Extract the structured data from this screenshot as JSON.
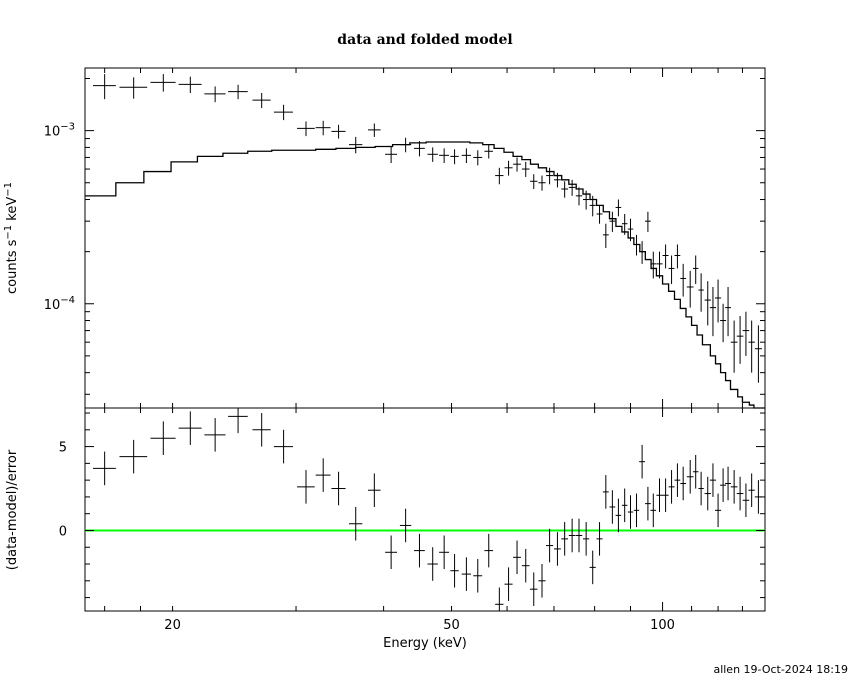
{
  "title": "data and folded model",
  "footer": "allen 19-Oct-2024 18:19",
  "colors": {
    "ink": "#000000",
    "zero_line": "#00ff00"
  },
  "chart_data": [
    {
      "type": "line",
      "panel": "top",
      "xscale": "log",
      "yscale": "log",
      "xlim": [
        15,
        140
      ],
      "ylim": [
        2.5e-05,
        0.0023
      ],
      "ylabel": "counts s^-1 keV^-1",
      "ytick_labels": [
        {
          "value": 0.001,
          "base": "10",
          "exp": "-3"
        },
        {
          "value": 0.0001,
          "base": "10",
          "exp": "-4"
        }
      ],
      "series": [
        {
          "kind": "data_crosses",
          "points": [
            [
              16.0,
              0.00182,
              0.6,
              0.0003
            ],
            [
              17.6,
              0.00178,
              0.8,
              0.00025
            ],
            [
              19.4,
              0.0019,
              0.8,
              0.00022
            ],
            [
              21.2,
              0.00185,
              0.8,
              0.0002
            ],
            [
              23.0,
              0.00163,
              0.8,
              0.00017
            ],
            [
              24.8,
              0.00168,
              0.8,
              0.00016
            ],
            [
              26.8,
              0.0015,
              0.8,
              0.00015
            ],
            [
              28.8,
              0.00128,
              0.9,
              0.00013
            ],
            [
              31.0,
              0.00103,
              0.9,
              0.0001
            ],
            [
              32.8,
              0.00104,
              0.8,
              0.0001
            ],
            [
              34.5,
              0.00099,
              0.8,
              9e-05
            ],
            [
              36.5,
              0.00083,
              0.8,
              9e-05
            ],
            [
              38.8,
              0.00101,
              0.8,
              9e-05
            ],
            [
              41.0,
              0.00073,
              0.8,
              8e-05
            ],
            [
              43.0,
              0.00083,
              0.8,
              8e-05
            ],
            [
              45.0,
              0.00079,
              0.8,
              8e-05
            ],
            [
              47.0,
              0.00073,
              0.8,
              7e-05
            ],
            [
              48.8,
              0.00072,
              0.8,
              7e-05
            ],
            [
              50.5,
              0.00071,
              0.7,
              7e-05
            ],
            [
              52.5,
              0.00072,
              0.8,
              7e-05
            ],
            [
              54.5,
              0.0007,
              0.8,
              7e-05
            ],
            [
              56.5,
              0.00076,
              0.8,
              7e-05
            ],
            [
              58.5,
              0.00055,
              0.8,
              6e-05
            ],
            [
              60.3,
              0.00061,
              0.8,
              6e-05
            ],
            [
              62.0,
              0.00064,
              0.8,
              6e-05
            ],
            [
              63.8,
              0.0006,
              0.8,
              6e-05
            ],
            [
              65.5,
              0.00051,
              0.8,
              5e-05
            ],
            [
              67.3,
              0.0005,
              0.8,
              5e-05
            ],
            [
              69.0,
              0.00055,
              0.8,
              6e-05
            ],
            [
              70.8,
              0.00052,
              0.8,
              5e-05
            ],
            [
              72.5,
              0.00046,
              0.8,
              5e-05
            ],
            [
              74.3,
              0.00047,
              0.8,
              5e-05
            ],
            [
              76.0,
              0.00042,
              0.8,
              5e-05
            ],
            [
              77.8,
              0.0004,
              0.8,
              5e-05
            ],
            [
              79.5,
              0.00037,
              0.8,
              5e-05
            ],
            [
              81.3,
              0.00033,
              0.8,
              4e-05
            ],
            [
              83.0,
              0.00025,
              0.8,
              4e-05
            ],
            [
              84.8,
              0.0003,
              0.8,
              4e-05
            ],
            [
              86.5,
              0.00036,
              0.8,
              4e-05
            ],
            [
              88.3,
              0.00029,
              0.8,
              4e-05
            ],
            [
              90.0,
              0.00027,
              0.8,
              4e-05
            ],
            [
              91.8,
              0.00022,
              0.8,
              3e-05
            ],
            [
              93.5,
              0.0002,
              0.9,
              3e-05
            ],
            [
              95.3,
              0.0003,
              0.9,
              4e-05
            ],
            [
              97.0,
              0.00017,
              0.9,
              3e-05
            ],
            [
              99.0,
              0.00017,
              1.0,
              3e-05
            ],
            [
              101.0,
              0.00019,
              1.0,
              3e-05
            ],
            [
              103.0,
              0.00016,
              1.0,
              3e-05
            ],
            [
              105.0,
              0.00019,
              1.0,
              3e-05
            ],
            [
              107.0,
              0.00014,
              1.0,
              3e-05
            ],
            [
              109.5,
              0.000125,
              1.2,
              3e-05
            ],
            [
              111.5,
              0.00016,
              1.0,
              3e-05
            ],
            [
              113.5,
              0.00012,
              1.0,
              3e-05
            ],
            [
              116.0,
              0.000105,
              1.2,
              3e-05
            ],
            [
              118.0,
              9.5e-05,
              1.2,
              3e-05
            ],
            [
              120.0,
              0.000108,
              1.2,
              3e-05
            ],
            [
              122.0,
              8e-05,
              1.2,
              2e-05
            ],
            [
              124.0,
              9.5e-05,
              1.2,
              3e-05
            ],
            [
              126.5,
              6e-05,
              1.4,
              2e-05
            ],
            [
              129.0,
              6.5e-05,
              1.4,
              2e-05
            ],
            [
              131.5,
              7e-05,
              1.4,
              2e-05
            ],
            [
              134.0,
              6e-05,
              1.4,
              2e-05
            ],
            [
              137.0,
              5.5e-05,
              1.6,
              2e-05
            ]
          ]
        },
        {
          "kind": "model_histogram",
          "edges": [
            15,
            16.6,
            18.2,
            19.9,
            21.7,
            23.6,
            25.6,
            27.7,
            29.8,
            32,
            34.2,
            36.5,
            38.9,
            41.2,
            43.6,
            46,
            48.4,
            50.8,
            53.1,
            55.4,
            57.5,
            59.4,
            61.2,
            63,
            64.8,
            66.5,
            68.3,
            70,
            71.8,
            73.5,
            75.3,
            77,
            78.8,
            80.5,
            82.3,
            84,
            85.8,
            87.5,
            89.3,
            91,
            92.8,
            94.5,
            96.3,
            98,
            100,
            102,
            104,
            106,
            108,
            110,
            112,
            114,
            117,
            119,
            121,
            123,
            125,
            128,
            130,
            133,
            135,
            137,
            140
          ],
          "values": [
            0.00042,
            0.0005,
            0.00058,
            0.00066,
            0.00071,
            0.00074,
            0.00076,
            0.00077,
            0.00077,
            0.00078,
            0.00079,
            0.0008,
            0.00081,
            0.00083,
            0.00085,
            0.00086,
            0.00086,
            0.00086,
            0.00085,
            0.00083,
            0.00079,
            0.00075,
            0.00071,
            0.00068,
            0.00064,
            0.00061,
            0.00058,
            0.00055,
            0.00052,
            0.00049,
            0.00046,
            0.00043,
            0.0004,
            0.00037,
            0.00034,
            0.00031,
            0.00028,
            0.00026,
            0.00024,
            0.00022,
            0.0002,
            0.00018,
            0.00016,
            0.000145,
            0.00013,
            0.000118,
            0.000106,
            9.4e-05,
            8.4e-05,
            7.5e-05,
            6.6e-05,
            5.8e-05,
            5e-05,
            4.5e-05,
            4e-05,
            3.6e-05,
            3.2e-05,
            2.9e-05,
            2.7e-05,
            2.6e-05,
            2.5e-05,
            2.5e-05
          ]
        }
      ]
    },
    {
      "type": "line",
      "panel": "bottom",
      "xscale": "log",
      "xlim": [
        15,
        140
      ],
      "ylim": [
        -4.8,
        7.3
      ],
      "xlabel": "Energy (keV)",
      "ylabel": "(data-model)/error",
      "xtick_labels": [
        20,
        50,
        100
      ],
      "ytick_labels": [
        5,
        0
      ],
      "zero_line": 0,
      "series": [
        {
          "kind": "residual_crosses",
          "points": [
            [
              16.0,
              3.7,
              0.6,
              1.0
            ],
            [
              17.6,
              4.4,
              0.8,
              1.0
            ],
            [
              19.4,
              5.5,
              0.8,
              1.0
            ],
            [
              21.2,
              6.1,
              0.8,
              1.0
            ],
            [
              23.0,
              5.7,
              0.8,
              1.0
            ],
            [
              24.8,
              6.8,
              0.8,
              1.0
            ],
            [
              26.8,
              6.0,
              0.8,
              1.0
            ],
            [
              28.8,
              5.0,
              0.9,
              1.0
            ],
            [
              31.0,
              2.6,
              0.9,
              1.0
            ],
            [
              32.8,
              3.3,
              0.8,
              1.0
            ],
            [
              34.5,
              2.5,
              0.8,
              1.0
            ],
            [
              36.5,
              0.4,
              0.8,
              1.0
            ],
            [
              38.8,
              2.4,
              0.8,
              1.0
            ],
            [
              41.0,
              -1.3,
              0.8,
              1.0
            ],
            [
              43.0,
              0.3,
              0.8,
              1.0
            ],
            [
              45.0,
              -1.2,
              0.8,
              1.0
            ],
            [
              47.0,
              -2.0,
              0.8,
              1.0
            ],
            [
              48.8,
              -1.3,
              0.8,
              1.0
            ],
            [
              50.5,
              -2.4,
              0.7,
              1.0
            ],
            [
              52.5,
              -2.6,
              0.8,
              1.0
            ],
            [
              54.5,
              -2.7,
              0.8,
              1.0
            ],
            [
              56.5,
              -1.2,
              0.8,
              1.0
            ],
            [
              58.5,
              -4.4,
              0.8,
              1.0
            ],
            [
              60.3,
              -3.2,
              0.8,
              1.0
            ],
            [
              62.0,
              -1.6,
              0.8,
              1.0
            ],
            [
              63.8,
              -2.1,
              0.8,
              1.0
            ],
            [
              65.5,
              -3.5,
              0.8,
              1.0
            ],
            [
              67.3,
              -3.0,
              0.8,
              1.0
            ],
            [
              69.0,
              -0.9,
              0.8,
              1.0
            ],
            [
              70.8,
              -1.1,
              0.8,
              1.0
            ],
            [
              72.5,
              -0.5,
              0.8,
              1.0
            ],
            [
              74.3,
              -0.3,
              0.8,
              1.0
            ],
            [
              76.0,
              -0.3,
              0.8,
              1.0
            ],
            [
              77.8,
              -0.5,
              0.8,
              1.0
            ],
            [
              79.5,
              -2.2,
              0.8,
              1.0
            ],
            [
              81.3,
              -0.5,
              0.8,
              1.0
            ],
            [
              83.0,
              2.3,
              0.8,
              1.0
            ],
            [
              84.8,
              1.4,
              0.8,
              1.0
            ],
            [
              86.5,
              0.9,
              0.8,
              1.0
            ],
            [
              88.3,
              1.5,
              0.8,
              1.0
            ],
            [
              90.0,
              1.1,
              0.8,
              1.0
            ],
            [
              91.8,
              1.2,
              0.8,
              1.0
            ],
            [
              93.5,
              4.1,
              0.9,
              1.0
            ],
            [
              95.3,
              1.6,
              0.9,
              1.0
            ],
            [
              97.0,
              1.2,
              0.9,
              1.0
            ],
            [
              99.0,
              2.1,
              1.0,
              1.0
            ],
            [
              101.0,
              2.1,
              1.0,
              1.0
            ],
            [
              103.0,
              2.6,
              1.0,
              1.0
            ],
            [
              105.0,
              3.0,
              1.0,
              1.0
            ],
            [
              107.0,
              2.8,
              1.0,
              1.0
            ],
            [
              109.5,
              3.2,
              1.2,
              1.0
            ],
            [
              111.5,
              3.5,
              1.0,
              1.0
            ],
            [
              113.5,
              2.5,
              1.0,
              1.0
            ],
            [
              116.0,
              2.2,
              1.2,
              1.0
            ],
            [
              118.0,
              3.0,
              1.2,
              1.0
            ],
            [
              120.0,
              1.2,
              1.2,
              1.0
            ],
            [
              122.0,
              2.7,
              1.2,
              1.0
            ],
            [
              124.0,
              2.8,
              1.2,
              1.0
            ],
            [
              126.5,
              2.6,
              1.4,
              1.0
            ],
            [
              129.0,
              2.2,
              1.4,
              1.0
            ],
            [
              131.5,
              1.8,
              1.4,
              1.0
            ],
            [
              134.0,
              2.4,
              1.4,
              1.0
            ],
            [
              137.0,
              2.0,
              1.6,
              1.0
            ]
          ]
        }
      ]
    }
  ]
}
